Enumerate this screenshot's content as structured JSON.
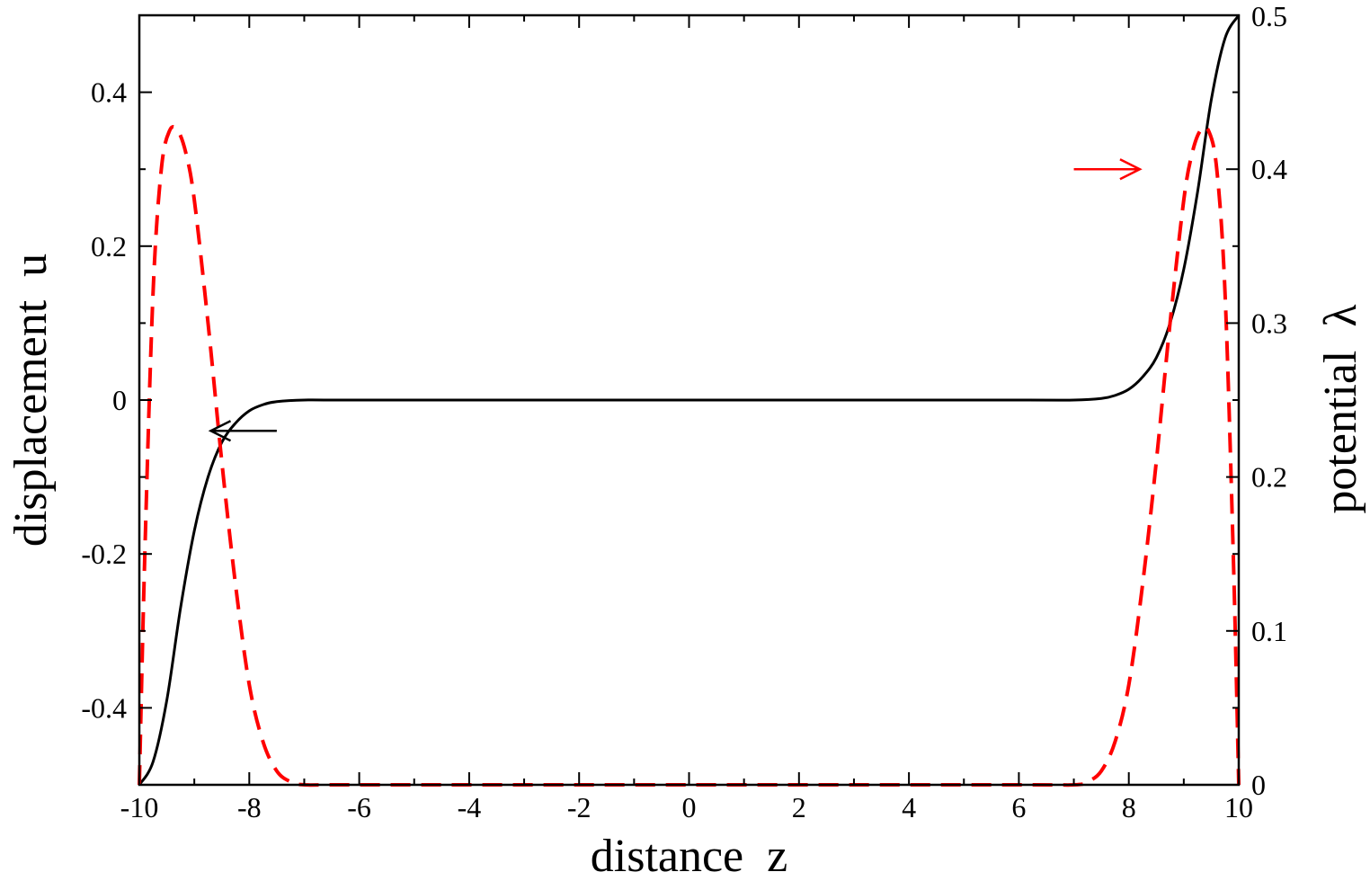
{
  "chart_data": {
    "type": "line",
    "xlabel": "distance  z",
    "ylabel_left": "displacement  u",
    "ylabel_right": "potential  λ",
    "xlim": [
      -10,
      10
    ],
    "ylim_left": [
      -0.5,
      0.5
    ],
    "ylim_right": [
      0,
      0.5
    ],
    "grid": false,
    "x_ticks": [
      -10,
      -8,
      -6,
      -4,
      -2,
      0,
      2,
      4,
      6,
      8,
      10
    ],
    "y_left_ticks": [
      -0.4,
      -0.2,
      0,
      0.2,
      0.4
    ],
    "y_left_tick_labels": [
      "-0.4",
      "-0.2",
      "0",
      "0.2",
      "0.4"
    ],
    "y_right_ticks": [
      0,
      0.1,
      0.2,
      0.3,
      0.4,
      0.5
    ],
    "y_right_tick_labels": [
      "0",
      "0.1",
      "0.2",
      "0.3",
      "0.4",
      "0.5"
    ],
    "series": [
      {
        "axis": "left",
        "color": "#000000",
        "style": "solid",
        "x": [
          -10,
          -9.75,
          -9.5,
          -9.25,
          -9.0,
          -8.75,
          -8.5,
          -8.25,
          -8.0,
          -7.75,
          -7.5,
          -7.0,
          -6.0,
          0,
          6.0,
          7.0,
          7.5,
          7.75,
          8.0,
          8.25,
          8.5,
          8.75,
          9.0,
          9.25,
          9.5,
          9.75,
          10
        ],
        "values": [
          -0.5,
          -0.47,
          -0.39,
          -0.27,
          -0.17,
          -0.1,
          -0.055,
          -0.03,
          -0.014,
          -0.006,
          -0.002,
          0,
          0,
          0,
          0,
          0,
          0.002,
          0.006,
          0.014,
          0.03,
          0.055,
          0.1,
          0.17,
          0.27,
          0.39,
          0.47,
          0.5
        ]
      },
      {
        "axis": "right",
        "color": "#ff0000",
        "style": "dashed",
        "x": [
          -10,
          -9.9,
          -9.75,
          -9.6,
          -9.45,
          -9.3,
          -9.15,
          -9.0,
          -8.75,
          -8.5,
          -8.25,
          -8.0,
          -7.75,
          -7.5,
          -7.25,
          -7.0,
          -6.0,
          0,
          6.0,
          7.0,
          7.25,
          7.5,
          7.75,
          8.0,
          8.25,
          8.5,
          8.75,
          9.0,
          9.15,
          9.3,
          9.45,
          9.6,
          9.75,
          9.9,
          10
        ],
        "values": [
          0,
          0.15,
          0.32,
          0.4,
          0.425,
          0.425,
          0.41,
          0.38,
          0.3,
          0.21,
          0.13,
          0.065,
          0.028,
          0.009,
          0.002,
          0,
          0,
          0,
          0,
          0,
          0.002,
          0.009,
          0.028,
          0.065,
          0.13,
          0.21,
          0.3,
          0.38,
          0.41,
          0.425,
          0.425,
          0.4,
          0.32,
          0.15,
          0
        ]
      }
    ],
    "annotations": [
      {
        "text": "←",
        "color": "#000000",
        "points_to": "left axis",
        "x_from": -7.5,
        "x_to": -8.7,
        "y_left": -0.04
      },
      {
        "text": "→",
        "color": "#ff0000",
        "points_to": "right axis",
        "x_from": 7.0,
        "x_to": 8.2,
        "y_right": 0.4
      }
    ]
  }
}
